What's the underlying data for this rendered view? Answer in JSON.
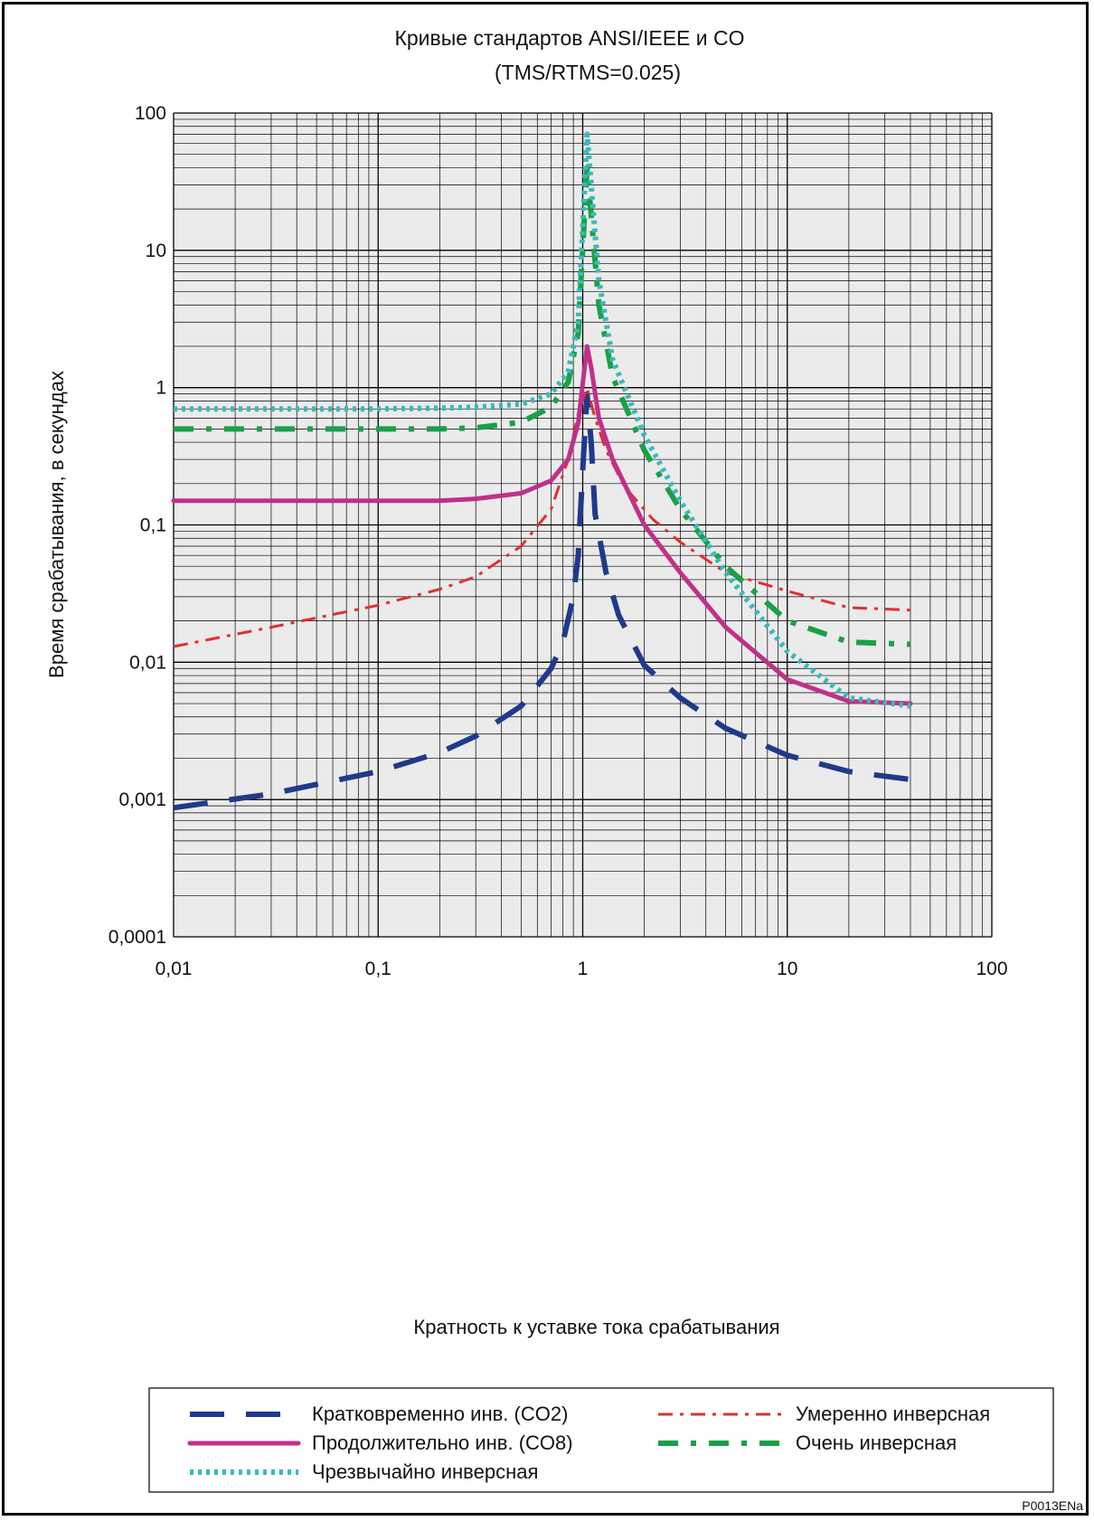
{
  "chart_data": {
    "type": "line",
    "title": "Кривые стандартов ANSI/IEEE и CO",
    "subtitle": "(TMS/RTMS=0.025)",
    "xlabel": "Кратность к уставке тока срабатывания",
    "ylabel": "Время срабатывания, в секундах",
    "xscale": "log",
    "yscale": "log",
    "xlim": [
      0.01,
      100
    ],
    "ylim": [
      0.0001,
      100
    ],
    "grid": true,
    "legend_position": "bottom",
    "x_tick_labels": [
      "0,01",
      "0,1",
      "1",
      "10",
      "100"
    ],
    "y_tick_labels": [
      "0,0001",
      "0,001",
      "0,01",
      "0,1",
      "1",
      "10",
      "100"
    ],
    "series": [
      {
        "name": "Кратковременно инв. (CO2)",
        "color": "#1f3a8a",
        "style": "long-dash",
        "x": [
          0.01,
          0.03,
          0.1,
          0.2,
          0.3,
          0.5,
          0.7,
          0.8,
          0.9,
          0.95,
          1.0,
          1.05,
          1.1,
          1.15,
          1.3,
          1.5,
          2,
          3,
          5,
          10,
          20,
          40
        ],
        "y": [
          0.00087,
          0.0011,
          0.0016,
          0.0022,
          0.0029,
          0.0048,
          0.009,
          0.014,
          0.03,
          0.06,
          0.25,
          0.9,
          0.4,
          0.12,
          0.045,
          0.022,
          0.0095,
          0.0055,
          0.0033,
          0.0021,
          0.0016,
          0.0014
        ]
      },
      {
        "name": "Умеренно инверсная",
        "color": "#e03030",
        "style": "dash-dot",
        "x": [
          0.01,
          0.03,
          0.1,
          0.2,
          0.3,
          0.5,
          0.7,
          0.85,
          0.95,
          1.05,
          1.15,
          1.3,
          1.6,
          2.2,
          3,
          5,
          10,
          20,
          40
        ],
        "y": [
          0.013,
          0.018,
          0.026,
          0.034,
          0.042,
          0.07,
          0.13,
          0.3,
          0.65,
          1.0,
          0.6,
          0.35,
          0.19,
          0.11,
          0.075,
          0.045,
          0.033,
          0.025,
          0.024
        ]
      },
      {
        "name": "Продолжительно инв. (CO8)",
        "color": "#c0308a",
        "style": "solid",
        "x": [
          0.01,
          0.05,
          0.1,
          0.2,
          0.3,
          0.5,
          0.7,
          0.85,
          0.95,
          1.05,
          1.1,
          1.2,
          1.4,
          2,
          3,
          5,
          10,
          20,
          40
        ],
        "y": [
          0.15,
          0.15,
          0.15,
          0.15,
          0.155,
          0.17,
          0.21,
          0.3,
          0.55,
          2.0,
          1.4,
          0.6,
          0.3,
          0.1,
          0.045,
          0.018,
          0.0075,
          0.0052,
          0.005
        ]
      },
      {
        "name": "Очень инверсная",
        "color": "#1aa047",
        "style": "dash",
        "x": [
          0.01,
          0.05,
          0.1,
          0.2,
          0.3,
          0.5,
          0.7,
          0.85,
          0.95,
          1.05,
          1.1,
          1.2,
          1.4,
          2,
          3,
          5,
          10,
          20,
          40
        ],
        "y": [
          0.5,
          0.5,
          0.5,
          0.5,
          0.51,
          0.56,
          0.72,
          1.1,
          2.5,
          40,
          18,
          4.0,
          1.2,
          0.35,
          0.13,
          0.05,
          0.02,
          0.014,
          0.0135
        ]
      },
      {
        "name": "Чрезвычайно инверсная",
        "color": "#3bb9b9",
        "style": "dotted",
        "x": [
          0.01,
          0.05,
          0.1,
          0.2,
          0.3,
          0.5,
          0.7,
          0.85,
          0.95,
          1.05,
          1.1,
          1.2,
          1.4,
          2,
          3,
          5,
          10,
          20,
          40
        ],
        "y": [
          0.7,
          0.7,
          0.7,
          0.71,
          0.72,
          0.76,
          0.9,
          1.3,
          3.0,
          70,
          30,
          6.0,
          1.6,
          0.45,
          0.15,
          0.045,
          0.012,
          0.0055,
          0.0048
        ]
      }
    ]
  },
  "figure_id": "P0013ENa"
}
